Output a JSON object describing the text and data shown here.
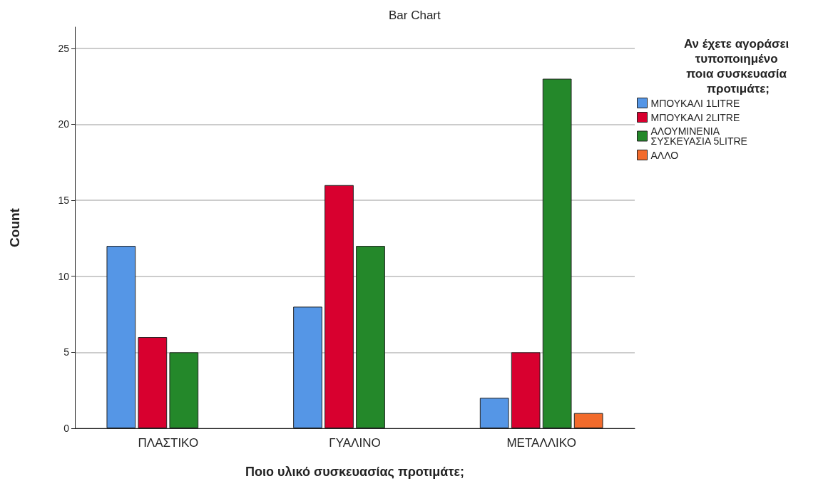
{
  "chart_data": {
    "type": "bar",
    "title": "Bar Chart",
    "xlabel": "Ποιο υλικό συσκευασίας προτιμάτε;",
    "ylabel": "Count",
    "legend_title": "Αν έχετε αγοράσει τυποποιημένο ποια συσκευασία προτιμάτε;",
    "categories": [
      "ΠΛΑΣΤΙΚΟ",
      "ΓΥΑΛΙΝΟ",
      "ΜΕΤΑΛΛΙΚΟ"
    ],
    "series": [
      {
        "name": "ΜΠΟΥΚΑΛΙ 1LITRE",
        "color": "#5596e6",
        "values": [
          12,
          8,
          2
        ]
      },
      {
        "name": "ΜΠΟΥΚΑΛΙ 2LITRE",
        "color": "#d8002f",
        "values": [
          6,
          16,
          5
        ]
      },
      {
        "name": "ΑΛΟΥΜΙΝΕΝΙΑ ΣΥΣΚΕΥΑΣΙΑ 5LITRE",
        "color": "#24882a",
        "values": [
          5,
          12,
          23
        ]
      },
      {
        "name": "ΑΛΛΟ",
        "color": "#f26b2c",
        "values": [
          null,
          null,
          1
        ]
      }
    ],
    "ylim": [
      0,
      26.4
    ],
    "yticks": [
      0,
      5,
      10,
      15,
      20,
      25
    ],
    "grid": "y",
    "legend": "right"
  }
}
